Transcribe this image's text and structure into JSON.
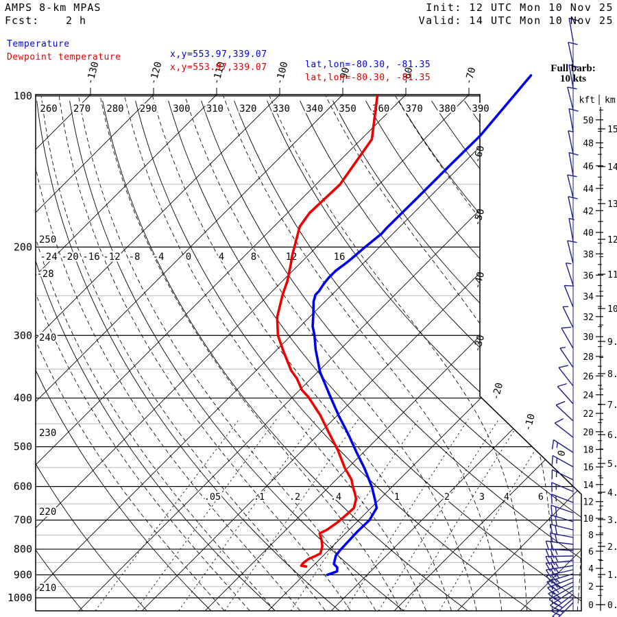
{
  "header": {
    "model": "AMPS 8-km MPAS",
    "fcst_label": "Fcst:",
    "fcst_value": "2 h",
    "init": "Init: 12 UTC Mon 10 Nov 25",
    "valid": "Valid: 14 UTC Mon 10 Nov 25",
    "series": [
      {
        "label": "Temperature",
        "xy": "x,y=553.97,339.07",
        "latlon": "lat,lon=-80.30, -81.35",
        "color": "#0000e0"
      },
      {
        "label": "Dewpoint temperature",
        "xy": "x,y=553.97,339.07",
        "latlon": "lat,lon=-80.30, -81.35",
        "color": "#e00000"
      }
    ]
  },
  "barb_note": {
    "line1": "Full barb:",
    "line2": "10 kts"
  },
  "colors": {
    "temperature": "#0000ee",
    "dewpoint": "#ee0000",
    "wind_barb": "#1b1b8e",
    "grid": "#000000",
    "grid_minor": "#b9b9b9"
  },
  "axes": {
    "pressure_labels": [
      100,
      200,
      300,
      400,
      500,
      600,
      700,
      800,
      900,
      1000
    ],
    "pressure_minor": [
      150,
      250,
      350,
      450,
      550,
      650,
      750,
      850,
      950
    ],
    "isotherm_top_labels": [
      -130,
      -120,
      -110,
      -100,
      -90,
      -80,
      -70
    ],
    "isotherm_right_labels": [
      -60,
      -50,
      -40,
      -30
    ],
    "isotherm_diag_labels": [
      -20,
      -10,
      0
    ],
    "theta_top_labels": [
      260,
      270,
      280,
      290,
      300,
      310,
      320,
      330,
      340,
      350,
      360,
      370,
      380,
      390
    ],
    "theta_left_labels": [
      250,
      240,
      230,
      220,
      210
    ],
    "moist_adiabat_labels": [
      -24,
      -20,
      -16,
      -12,
      -8,
      -4,
      0,
      4,
      8,
      12,
      16
    ],
    "moist_adiabat_left_label": -28,
    "mixing_ratio_labels": [
      ".05",
      ".1",
      ".2",
      ".4",
      "1",
      "2",
      "3",
      "4",
      "6"
    ],
    "kft_title": "kft",
    "km_title": "km",
    "kft_labels": [
      0,
      2,
      4,
      6,
      8,
      10,
      12,
      14,
      16,
      18,
      20,
      22,
      24,
      26,
      28,
      30,
      32,
      34,
      36,
      38,
      40,
      42,
      44,
      46,
      48,
      50
    ],
    "km_labels": [
      "0.",
      "1.",
      "2.",
      "3.",
      "4.",
      "5.",
      "6.",
      "7.",
      "8.",
      "9.",
      "10.",
      "11.",
      "12.",
      "13.",
      "14.",
      "15."
    ]
  },
  "chart_data": {
    "type": "skew-t",
    "pressure_unit": "hPa",
    "temperature_unit": "C",
    "temperature_profile": [
      [
        91,
        -63.2
      ],
      [
        120,
        -61.7
      ],
      [
        136,
        -61.8
      ],
      [
        159,
        -61.8
      ],
      [
        183,
        -61.9
      ],
      [
        188,
        -61.8
      ],
      [
        200,
        -62.3
      ],
      [
        211,
        -62.6
      ],
      [
        216,
        -62.8
      ],
      [
        223,
        -63.2
      ],
      [
        230,
        -63.2
      ],
      [
        237,
        -63.0
      ],
      [
        245,
        -62.6
      ],
      [
        249,
        -62.6
      ],
      [
        257,
        -61.8
      ],
      [
        271,
        -60.0
      ],
      [
        288,
        -58.0
      ],
      [
        300,
        -56.3
      ],
      [
        320,
        -53.9
      ],
      [
        355,
        -49.6
      ],
      [
        394,
        -44.5
      ],
      [
        433,
        -39.8
      ],
      [
        471,
        -35.4
      ],
      [
        513,
        -31.1
      ],
      [
        552,
        -27.3
      ],
      [
        601,
        -23.2
      ],
      [
        637,
        -20.7
      ],
      [
        662,
        -19.1
      ],
      [
        700,
        -18.3
      ],
      [
        737,
        -18.4
      ],
      [
        803,
        -18.2
      ],
      [
        824,
        -18.0
      ],
      [
        856,
        -17.0
      ],
      [
        870,
        -15.9
      ],
      [
        886,
        -15.3
      ],
      [
        900,
        -16.3
      ]
    ],
    "dewpoint_profile": [
      [
        100,
        -84.3
      ],
      [
        122,
        -78.3
      ],
      [
        150,
        -76.2
      ],
      [
        171,
        -76.5
      ],
      [
        182,
        -75.9
      ],
      [
        200,
        -73.5
      ],
      [
        208,
        -72.5
      ],
      [
        216,
        -71.4
      ],
      [
        234,
        -69.2
      ],
      [
        249,
        -67.8
      ],
      [
        276,
        -65.1
      ],
      [
        300,
        -62.1
      ],
      [
        320,
        -59.1
      ],
      [
        352,
        -54.5
      ],
      [
        366,
        -52.2
      ],
      [
        385,
        -49.7
      ],
      [
        398,
        -47.5
      ],
      [
        433,
        -42.7
      ],
      [
        467,
        -38.8
      ],
      [
        508,
        -34.4
      ],
      [
        552,
        -30.4
      ],
      [
        581,
        -27.6
      ],
      [
        601,
        -26.2
      ],
      [
        620,
        -24.8
      ],
      [
        635,
        -23.8
      ],
      [
        662,
        -22.7
      ],
      [
        681,
        -22.8
      ],
      [
        707,
        -23.0
      ],
      [
        732,
        -23.5
      ],
      [
        744,
        -24.1
      ],
      [
        768,
        -22.7
      ],
      [
        790,
        -21.6
      ],
      [
        816,
        -20.8
      ],
      [
        826,
        -21.2
      ],
      [
        837,
        -21.8
      ],
      [
        852,
        -22.0
      ],
      [
        863,
        -21.9
      ],
      [
        866,
        -21.0
      ]
    ],
    "full_barb_kts": 10,
    "wind_barbs": [
      [
        60,
        100,
        1
      ],
      [
        95,
        102,
        1
      ],
      [
        128,
        100,
        1
      ],
      [
        160,
        104,
        1
      ],
      [
        192,
        100,
        1
      ],
      [
        224,
        102,
        0.5
      ],
      [
        256,
        100,
        1
      ],
      [
        288,
        104,
        1
      ],
      [
        320,
        102,
        1
      ],
      [
        352,
        100,
        0.5
      ],
      [
        384,
        104,
        1
      ],
      [
        416,
        108,
        0.5
      ],
      [
        448,
        112,
        1
      ],
      [
        478,
        116,
        0.5
      ],
      [
        508,
        120,
        1
      ],
      [
        536,
        124,
        0.5
      ],
      [
        563,
        128,
        1
      ],
      [
        589,
        132,
        1
      ],
      [
        614,
        137,
        1
      ],
      [
        638,
        142,
        1
      ],
      [
        660,
        147,
        1.5
      ],
      [
        681,
        151,
        1.5
      ],
      [
        700,
        154,
        1.5
      ],
      [
        717,
        157,
        1.5
      ],
      [
        733,
        159,
        1.5
      ],
      [
        748,
        161,
        2
      ],
      [
        761,
        163,
        2
      ],
      [
        773,
        166,
        2
      ],
      [
        784,
        169,
        2
      ],
      [
        794,
        173,
        2
      ],
      [
        803,
        177,
        2.5
      ],
      [
        811,
        181,
        2.5
      ],
      [
        818,
        185,
        2.5
      ],
      [
        825,
        189,
        2.5
      ],
      [
        831,
        193,
        2.5
      ],
      [
        837,
        197,
        2.5
      ],
      [
        843,
        201,
        2.5
      ],
      [
        849,
        205,
        2
      ],
      [
        855,
        209,
        2
      ],
      [
        861,
        213,
        2
      ],
      [
        867,
        217,
        2
      ],
      [
        873,
        221,
        1.5
      ],
      [
        879,
        225,
        1.5
      ]
    ]
  }
}
